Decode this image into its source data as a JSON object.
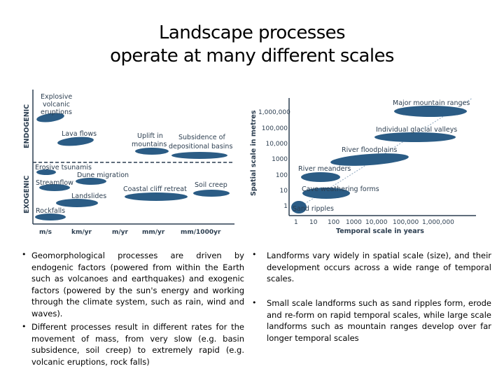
{
  "title": {
    "line1": "Landscape processes",
    "line2": "operate at many different scales"
  },
  "colors": {
    "blob": "#2b5c85",
    "axis": "#2c3e50",
    "line": "#8fa8bf"
  },
  "left_figure": {
    "y_axis_endogenic": "ENDOGENIC",
    "y_axis_exogenic": "EXOGENIC",
    "labels": {
      "explosive": "Explosive",
      "volcanic": "volcanic",
      "eruptions": "eruptions",
      "lava_flows": "Lava flows",
      "uplift_in": "Uplift in",
      "mountains": "mountains",
      "subsidence_of": "Subsidence of",
      "depositional_basins": "depositional basins",
      "erosive_tsunamis": "Erosive tsunamis",
      "dune_migration": "Dune migration",
      "streamflow": "Streamflow",
      "landslides": "Landslides",
      "coastal_cliff_retreat": "Coastal cliff retreat",
      "soil_creep": "Soil creep",
      "rockfalls": "Rockfalls"
    },
    "x_ticks": [
      "m/s",
      "km/yr",
      "m/yr",
      "mm/yr",
      "mm/1000yr"
    ]
  },
  "right_figure": {
    "y_axis_label": "Spatial scale in metres",
    "x_axis_label": "Temporal scale in years",
    "y_ticks": [
      "1,000,000",
      "100,000",
      "10,000",
      "1000",
      "100",
      "10",
      "1"
    ],
    "x_ticks": [
      "1",
      "10",
      "100",
      "1000",
      "10,000",
      "100,000",
      "1,000,000"
    ],
    "labels": {
      "major_mountain_ranges": "Major mountain ranges",
      "individual_glacial_valleys": "Individual glacial valleys",
      "river_floodplains": "River floodplains",
      "river_meanders": "River meanders",
      "cave_weathering_forms": "Cave weathering forms",
      "sand_ripples": "Sand ripples"
    }
  },
  "bullets": {
    "left": [
      "Geomorphological processes are driven by endogenic factors (powered from within the Earth such as volcanoes and earthquakes) and exogenic factors (powered by the sun's energy and working through the climate system, such as rain, wind and waves).",
      "Different processes result in different rates for the movement of mass, from very slow (e.g. basin subsidence, soil creep) to extremely rapid (e.g. volcanic eruptions, rock falls)"
    ],
    "right": [
      "Landforms vary widely in spatial scale (size), and their development occurs across a wide range of temporal scales.",
      "Small scale landforms such as sand ripples form, erode and re-form on rapid temporal scales, while large scale landforms such as mountain ranges develop over far longer temporal scales"
    ],
    "marker": "•"
  }
}
